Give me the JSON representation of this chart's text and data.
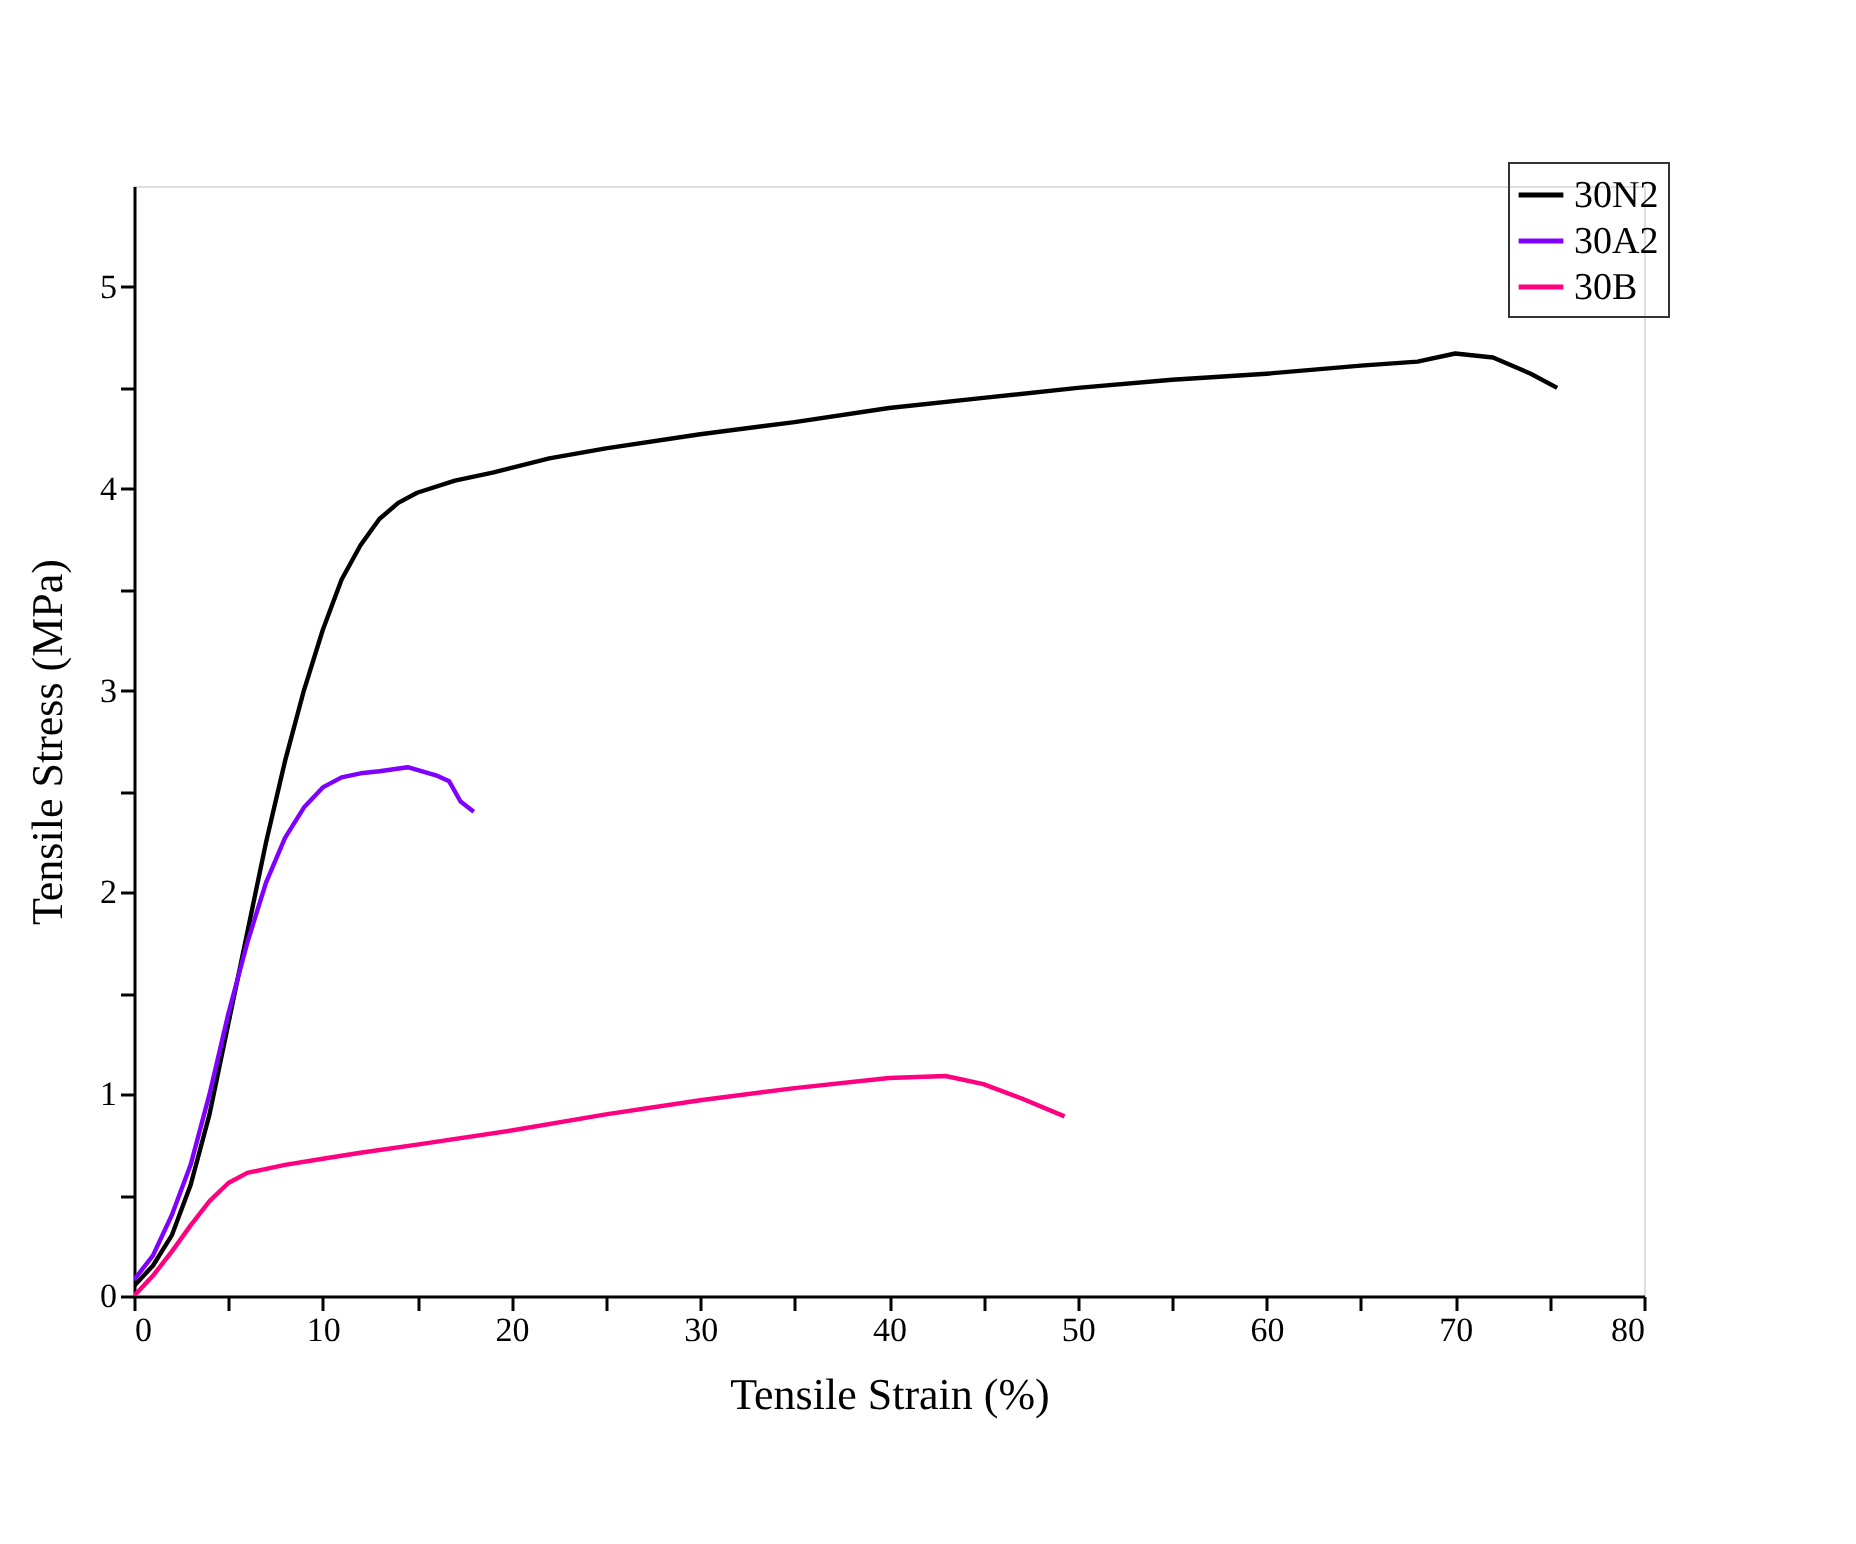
{
  "chart_data": {
    "type": "line",
    "xlabel": "Tensile Strain (%)",
    "ylabel": "Tensile Stress (MPa)",
    "xlim": [
      0,
      80
    ],
    "ylim": [
      0,
      5.5
    ],
    "xticks": [
      0,
      {
        "value": 5,
        "label": null
      },
      10,
      {
        "value": 15,
        "label": null
      },
      20,
      {
        "value": 25,
        "label": null
      },
      30,
      {
        "value": 35,
        "label": null
      },
      40,
      {
        "value": 45,
        "label": null
      },
      50,
      {
        "value": 55,
        "label": null
      },
      60,
      {
        "value": 65,
        "label": null
      },
      70,
      {
        "value": 75,
        "label": null
      },
      80
    ],
    "yticks": [
      0,
      {
        "value": 0.5,
        "label": null
      },
      1,
      {
        "value": 1.5,
        "label": null
      },
      2,
      {
        "value": 2.5,
        "label": null
      },
      3,
      {
        "value": 3.5,
        "label": null
      },
      4,
      {
        "value": 4.5,
        "label": null
      },
      5
    ],
    "grid": false,
    "legend": "top right",
    "marker": "none",
    "line_style": "solid",
    "series": [
      {
        "name": "30N2",
        "color": "#000000",
        "x": [
          0,
          1,
          2,
          3,
          4,
          5,
          6,
          7,
          8,
          9,
          10,
          11,
          12,
          13,
          14,
          15,
          17,
          19,
          22,
          25,
          30,
          35,
          40,
          45,
          50,
          55,
          60,
          65,
          68,
          70,
          72,
          74,
          75.4
        ],
        "values": [
          0.05,
          0.15,
          0.3,
          0.55,
          0.9,
          1.35,
          1.8,
          2.25,
          2.65,
          3.0,
          3.3,
          3.55,
          3.72,
          3.85,
          3.93,
          3.98,
          4.04,
          4.08,
          4.15,
          4.2,
          4.27,
          4.33,
          4.4,
          4.45,
          4.5,
          4.54,
          4.57,
          4.61,
          4.63,
          4.67,
          4.65,
          4.57,
          4.5
        ]
      },
      {
        "name": "30A2",
        "color": "#8000ff",
        "x": [
          0,
          1,
          2,
          3,
          4,
          5,
          6,
          7,
          8,
          9,
          10,
          11,
          12,
          13,
          14.5,
          16,
          16.7,
          17.3,
          18
        ],
        "values": [
          0.08,
          0.2,
          0.4,
          0.65,
          1.0,
          1.4,
          1.75,
          2.05,
          2.27,
          2.42,
          2.52,
          2.57,
          2.59,
          2.6,
          2.62,
          2.58,
          2.55,
          2.45,
          2.4
        ]
      },
      {
        "name": "30B",
        "color": "#ff0080",
        "x": [
          0,
          1,
          2,
          3,
          4,
          5,
          6,
          8,
          10,
          12,
          15,
          20,
          25,
          30,
          35,
          40,
          43,
          45,
          47,
          49.3
        ],
        "values": [
          0,
          0.1,
          0.22,
          0.35,
          0.47,
          0.56,
          0.61,
          0.65,
          0.68,
          0.71,
          0.75,
          0.82,
          0.9,
          0.97,
          1.03,
          1.08,
          1.09,
          1.05,
          0.98,
          0.89
        ]
      }
    ]
  }
}
